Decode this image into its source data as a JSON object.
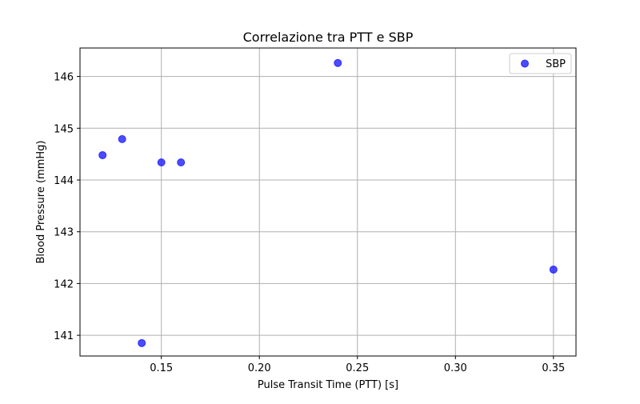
{
  "chart_data": {
    "type": "scatter",
    "title": "Correlazione tra PTT e SBP",
    "xlabel": "Pulse Transit Time (PTT) [s]",
    "ylabel": "Blood Pressure (mmHg)",
    "xlim": [
      0.1085,
      0.3615
    ],
    "ylim": [
      140.6,
      146.55
    ],
    "xticks": [
      0.15,
      0.2,
      0.25,
      0.3,
      0.35
    ],
    "xtick_labels": [
      "0.15",
      "0.20",
      "0.25",
      "0.30",
      "0.35"
    ],
    "yticks": [
      141,
      142,
      143,
      144,
      145,
      146
    ],
    "ytick_labels": [
      "141",
      "142",
      "143",
      "144",
      "145",
      "146"
    ],
    "grid": true,
    "legend_position": "top-right",
    "series": [
      {
        "name": "SBP",
        "color": "#0000ff",
        "points": [
          {
            "x": 0.12,
            "y": 144.48
          },
          {
            "x": 0.13,
            "y": 144.79
          },
          {
            "x": 0.14,
            "y": 140.85
          },
          {
            "x": 0.15,
            "y": 144.34
          },
          {
            "x": 0.16,
            "y": 144.34
          },
          {
            "x": 0.24,
            "y": 146.26
          },
          {
            "x": 0.35,
            "y": 142.27
          }
        ]
      }
    ]
  }
}
